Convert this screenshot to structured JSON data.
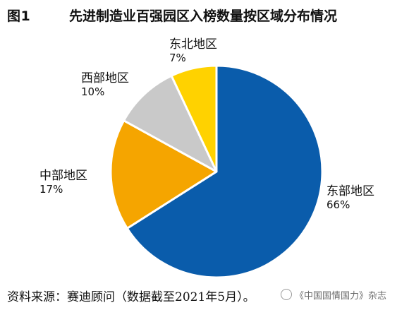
{
  "figure": {
    "label": "图1",
    "title": "先进制造业百强园区入榜数量按区域分布情况"
  },
  "chart_data": {
    "type": "pie",
    "title": "先进制造业百强园区入榜数量按区域分布情况",
    "unit": "%",
    "slices": [
      {
        "name": "东部地区",
        "value": 66,
        "label": "66%",
        "color": "#0a5cab"
      },
      {
        "name": "中部地区",
        "value": 17,
        "label": "17%",
        "color": "#f5a500"
      },
      {
        "name": "西部地区",
        "value": 10,
        "label": "10%",
        "color": "#c9c9c9"
      },
      {
        "name": "东北地区",
        "value": 7,
        "label": "7%",
        "color": "#ffd200"
      }
    ],
    "start_direction": "12 o'clock",
    "direction": "clockwise",
    "legend": "none (direct labels)"
  },
  "source": "资料来源：赛迪顾问（数据截至2021年5月）。",
  "watermark": "《中国国情国力》杂志"
}
